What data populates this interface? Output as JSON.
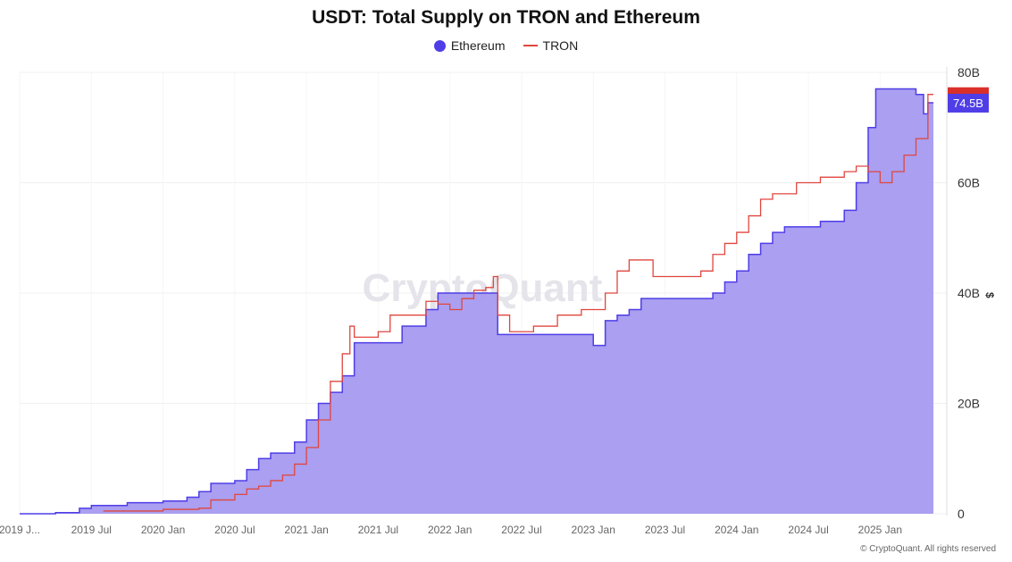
{
  "chart_data": {
    "type": "area",
    "title": "USDT: Total Supply on TRON and Ethereum",
    "ylabel": "$",
    "ylim": [
      0,
      80
    ],
    "y_ticks": [
      "0",
      "20B",
      "40B",
      "60B",
      "80B"
    ],
    "y_tick_values": [
      0,
      20,
      40,
      60,
      80
    ],
    "x_ticks": [
      "2019 J...",
      "2019 Jul",
      "2020 Jan",
      "2020 Jul",
      "2021 Jan",
      "2021 Jul",
      "2022 Jan",
      "2022 Jul",
      "2023 Jan",
      "2023 Jul",
      "2024 Jan",
      "2024 Jul",
      "2025 Jan"
    ],
    "x_tick_dates": [
      "2019-01",
      "2019-07",
      "2020-01",
      "2020-07",
      "2021-01",
      "2021-07",
      "2022-01",
      "2022-07",
      "2023-01",
      "2023-07",
      "2024-01",
      "2024-07",
      "2025-01"
    ],
    "grid": true,
    "legend_position": "top-center",
    "watermark": "CryptoQuant",
    "series": [
      {
        "name": "Ethereum",
        "style": "area",
        "color": "#4f3ee6",
        "fill": "#a59af0",
        "badge": "74.5B",
        "x": [
          "2019-01",
          "2019-04",
          "2019-06",
          "2019-07",
          "2019-10",
          "2020-01",
          "2020-03",
          "2020-04",
          "2020-05",
          "2020-07",
          "2020-08",
          "2020-09",
          "2020-10",
          "2020-12",
          "2021-01",
          "2021-02",
          "2021-03",
          "2021-04",
          "2021-05",
          "2021-07",
          "2021-09",
          "2021-11",
          "2021-12",
          "2022-04",
          "2022-05",
          "2022-12",
          "2023-01",
          "2023-02",
          "2023-03",
          "2023-04",
          "2023-05",
          "2023-10",
          "2023-11",
          "2023-12",
          "2024-01",
          "2024-02",
          "2024-03",
          "2024-04",
          "2024-05",
          "2024-08",
          "2024-10",
          "2024-11",
          "2024-12",
          "2024-12-20",
          "2025-03",
          "2025-04",
          "2025-04-20",
          "2025-05"
        ],
        "values": [
          0,
          0.2,
          1,
          1.5,
          2,
          2.3,
          3,
          4,
          5.5,
          6,
          8,
          10,
          11,
          13,
          17,
          20,
          22,
          25,
          31,
          31,
          34,
          37,
          40,
          40,
          32.5,
          32.5,
          30.5,
          35,
          36,
          37,
          39,
          39,
          40,
          42,
          44,
          47,
          49,
          51,
          52,
          53,
          55,
          60,
          70,
          77,
          77,
          76,
          72.5,
          74.5
        ]
      },
      {
        "name": "TRON",
        "style": "line",
        "color": "#e0463e",
        "x": [
          "2019-08",
          "2020-01",
          "2020-04",
          "2020-05",
          "2020-07",
          "2020-08",
          "2020-09",
          "2020-10",
          "2020-11",
          "2020-12",
          "2021-01",
          "2021-02",
          "2021-03",
          "2021-04",
          "2021-04-20",
          "2021-05",
          "2021-07",
          "2021-08",
          "2021-10",
          "2021-11",
          "2021-12",
          "2022-01",
          "2022-02",
          "2022-03",
          "2022-04",
          "2022-04-20",
          "2022-05",
          "2022-06",
          "2022-08",
          "2022-10",
          "2022-12",
          "2023-02",
          "2023-03",
          "2023-04",
          "2023-05",
          "2023-06",
          "2023-08",
          "2023-10",
          "2023-11",
          "2023-12",
          "2024-01",
          "2024-02",
          "2024-03",
          "2024-04",
          "2024-06",
          "2024-08",
          "2024-10",
          "2024-11",
          "2024-12",
          "2025-01",
          "2025-02",
          "2025-03",
          "2025-04",
          "2025-05"
        ],
        "values": [
          0.5,
          0.8,
          1,
          2.5,
          3.5,
          4.5,
          5,
          6,
          7,
          9,
          12,
          17,
          24,
          29,
          34,
          32,
          33,
          36,
          36,
          38.5,
          38,
          37,
          39,
          40.5,
          41,
          43,
          36,
          33,
          34,
          36,
          37,
          40,
          44,
          46,
          46,
          43,
          43,
          44,
          47,
          49,
          51,
          54,
          57,
          58,
          60,
          61,
          62,
          63,
          62,
          60,
          62,
          65,
          68,
          76
        ]
      }
    ]
  },
  "footer": "© CryptoQuant. All rights reserved"
}
